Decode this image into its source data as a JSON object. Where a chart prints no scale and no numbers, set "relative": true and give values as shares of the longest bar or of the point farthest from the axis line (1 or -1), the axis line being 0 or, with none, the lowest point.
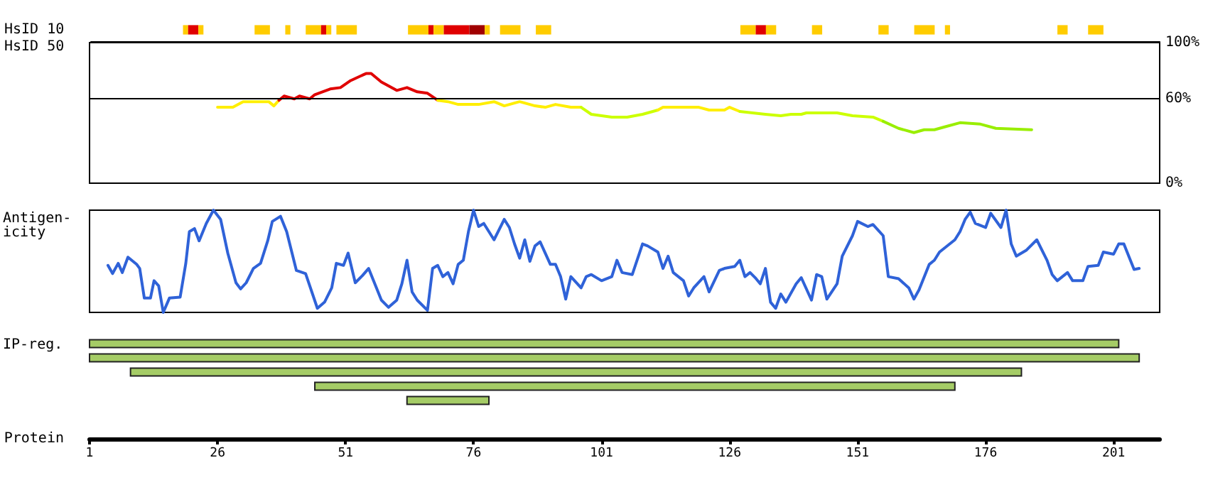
{
  "chart_data": [
    {
      "type": "bar",
      "orientation": "horizontal",
      "categories": [
        "HsID 10",
        "HsID 50"
      ],
      "xlim": [
        1,
        210
      ],
      "tick_labels": "y",
      "series": [
        {
          "color": "#ffcc00",
          "base": [
            19,
            null
          ],
          "values": [
            1,
            null
          ]
        },
        {
          "color": "#e00000",
          "base": [
            20,
            null
          ],
          "values": [
            2,
            null
          ]
        },
        {
          "color": "#ffcc00",
          "base": [
            22,
            null
          ],
          "values": [
            1,
            null
          ]
        },
        {
          "color": "#ffcc00",
          "base": [
            33,
            null
          ],
          "values": [
            3,
            null
          ]
        },
        {
          "color": "#ffcc00",
          "base": [
            39,
            null
          ],
          "values": [
            1,
            null
          ]
        },
        {
          "color": "#ffcc00",
          "base": [
            43,
            null
          ],
          "values": [
            3,
            null
          ]
        },
        {
          "color": "#e00000",
          "base": [
            46,
            null
          ],
          "values": [
            1,
            null
          ]
        },
        {
          "color": "#ffcc00",
          "base": [
            47,
            null
          ],
          "values": [
            1,
            null
          ]
        },
        {
          "color": "#ffcc00",
          "base": [
            49,
            null
          ],
          "values": [
            4,
            null
          ]
        },
        {
          "color": "#ffcc00",
          "base": [
            63,
            null
          ],
          "values": [
            4,
            null
          ]
        },
        {
          "color": "#e00000",
          "base": [
            67,
            null
          ],
          "values": [
            1,
            null
          ]
        },
        {
          "color": "#ffcc00",
          "base": [
            68,
            null
          ],
          "values": [
            2,
            null
          ]
        },
        {
          "color": "#e00000",
          "base": [
            70,
            null
          ],
          "values": [
            5,
            null
          ]
        },
        {
          "color": "#a00000",
          "base": [
            75,
            null
          ],
          "values": [
            3,
            null
          ]
        },
        {
          "color": "#ffcc00",
          "base": [
            78,
            null
          ],
          "values": [
            1,
            null
          ]
        },
        {
          "color": "#ffcc00",
          "base": [
            81,
            null
          ],
          "values": [
            4,
            null
          ]
        },
        {
          "color": "#ffcc00",
          "base": [
            88,
            null
          ],
          "values": [
            3,
            null
          ]
        },
        {
          "color": "#ffcc00",
          "base": [
            128,
            null
          ],
          "values": [
            3,
            null
          ]
        },
        {
          "color": "#e00000",
          "base": [
            131,
            null
          ],
          "values": [
            2,
            null
          ]
        },
        {
          "color": "#ffcc00",
          "base": [
            133,
            null
          ],
          "values": [
            2,
            null
          ]
        },
        {
          "color": "#ffcc00",
          "base": [
            142,
            null
          ],
          "values": [
            2,
            null
          ]
        },
        {
          "color": "#ffcc00",
          "base": [
            155,
            null
          ],
          "values": [
            2,
            null
          ]
        },
        {
          "color": "#ffcc00",
          "base": [
            162,
            null
          ],
          "values": [
            4,
            null
          ]
        },
        {
          "color": "#ffcc00",
          "base": [
            168,
            null
          ],
          "values": [
            1,
            null
          ]
        },
        {
          "color": "#ffcc00",
          "base": [
            190,
            null
          ],
          "values": [
            2,
            null
          ]
        },
        {
          "color": "#ffcc00",
          "base": [
            196,
            null
          ],
          "values": [
            3,
            null
          ]
        }
      ]
    },
    {
      "type": "line",
      "xlim": [
        1,
        210
      ],
      "ylim": [
        0,
        100
      ],
      "yticks": [
        {
          "value": 0,
          "label": "0%"
        },
        {
          "value": 60,
          "label": "60%"
        },
        {
          "value": 100,
          "label": "100%"
        }
      ],
      "tick_labels": "y",
      "grid": false,
      "marker": "none",
      "ref_lines": [
        {
          "axis": "y",
          "value": 60,
          "color": "#000000"
        }
      ],
      "series": [
        {
          "color": "#ffee00",
          "x": [
            26,
            29,
            31,
            36,
            37,
            38
          ],
          "values": [
            54,
            54,
            58,
            58,
            55,
            59
          ]
        },
        {
          "color": "#e00000",
          "x": [
            38,
            39,
            41,
            42,
            44,
            45,
            48,
            50,
            52,
            55,
            56,
            58,
            61,
            63,
            65,
            67,
            69
          ],
          "values": [
            59,
            62,
            60,
            62,
            60,
            63,
            67,
            68,
            73,
            78,
            78,
            72,
            66,
            68,
            65,
            64,
            59
          ]
        },
        {
          "color": "#ffee00",
          "x": [
            69,
            71,
            73,
            77,
            80,
            82,
            85,
            88,
            90,
            92,
            95,
            97
          ],
          "values": [
            59,
            58,
            56,
            56,
            58,
            55,
            58,
            55,
            54,
            56,
            54,
            54
          ]
        },
        {
          "color": "#ccff00",
          "x": [
            97,
            99,
            103,
            106,
            109,
            112
          ],
          "values": [
            54,
            49,
            47,
            47,
            49,
            52
          ]
        },
        {
          "color": "#ffee00",
          "x": [
            112,
            113,
            120,
            122,
            125,
            126,
            128
          ],
          "values": [
            52,
            54,
            54,
            52,
            52,
            54,
            51
          ]
        },
        {
          "color": "#ccff00",
          "x": [
            128,
            133,
            136,
            138,
            140,
            141,
            147,
            150,
            154,
            156
          ],
          "values": [
            51,
            49,
            48,
            49,
            49,
            50,
            50,
            48,
            47,
            44
          ]
        },
        {
          "color": "#99ee00",
          "x": [
            156,
            159,
            162,
            164,
            166,
            168,
            171,
            175,
            178,
            185
          ],
          "values": [
            44,
            39,
            36,
            38,
            38,
            40,
            43,
            42,
            39,
            38
          ]
        }
      ]
    },
    {
      "type": "line",
      "relative": true,
      "ylabel": "Antigen-icity",
      "xlim": [
        1,
        210
      ],
      "tick_labels": false,
      "marker": "none",
      "series": [
        {
          "color": "#2f62d8",
          "x": [
            4.6,
            5.5,
            6.6,
            7.4,
            8.5,
            10.2,
            10.8,
            11.7,
            12.9,
            13.6,
            14.5,
            15.4,
            16.6,
            18.7,
            19.8,
            20.5,
            21.5,
            22.4,
            23.8,
            25.2,
            26.6,
            28,
            29.6,
            30.5,
            31.6,
            33,
            34.4,
            35.8,
            36.7,
            38.3,
            39.5,
            41.4,
            43.2,
            45.5,
            46.9,
            48.3,
            49.2,
            50.6,
            51.5,
            52.9,
            54.3,
            55.5,
            58,
            59.4,
            61,
            62,
            63,
            64,
            65,
            67,
            68,
            69,
            70,
            71,
            72,
            73,
            74,
            75,
            76,
            77,
            78,
            79,
            80,
            82,
            83,
            84,
            85,
            86,
            87,
            88,
            89,
            91,
            92,
            93,
            94,
            95,
            97,
            98,
            99,
            101,
            103,
            104,
            105,
            107,
            109,
            110,
            112,
            113,
            114,
            115,
            117,
            118,
            119,
            121,
            122,
            124,
            125,
            127,
            128,
            129,
            130,
            131,
            132,
            133,
            134,
            135,
            136,
            137,
            139,
            140,
            142,
            143,
            144,
            145,
            147,
            148,
            150,
            151,
            153,
            154,
            156,
            157,
            159,
            161,
            162,
            163,
            165,
            166,
            167,
            168,
            170,
            171,
            172,
            173,
            174,
            176,
            177,
            179,
            180,
            181,
            182,
            184,
            186,
            188,
            189,
            190,
            192,
            193,
            195,
            196,
            198,
            199,
            201,
            202,
            203,
            205,
            206
          ],
          "values": [
            0.46,
            0.38,
            0.48,
            0.39,
            0.54,
            0.47,
            0.43,
            0.14,
            0.14,
            0.31,
            0.26,
            0,
            0.14,
            0.15,
            0.48,
            0.79,
            0.82,
            0.7,
            0.87,
            1,
            0.91,
            0.58,
            0.29,
            0.23,
            0.29,
            0.43,
            0.48,
            0.7,
            0.89,
            0.94,
            0.79,
            0.41,
            0.38,
            0.04,
            0.1,
            0.24,
            0.48,
            0.46,
            0.58,
            0.29,
            0.36,
            0.43,
            0.12,
            0.05,
            0.12,
            0.28,
            0.51,
            0.2,
            0.12,
            0.02,
            0.43,
            0.46,
            0.35,
            0.39,
            0.28,
            0.47,
            0.51,
            0.79,
            1,
            0.84,
            0.87,
            0.79,
            0.71,
            0.91,
            0.83,
            0.67,
            0.53,
            0.71,
            0.5,
            0.65,
            0.69,
            0.47,
            0.47,
            0.35,
            0.13,
            0.35,
            0.24,
            0.35,
            0.37,
            0.31,
            0.35,
            0.51,
            0.39,
            0.37,
            0.67,
            0.65,
            0.59,
            0.43,
            0.55,
            0.39,
            0.31,
            0.16,
            0.24,
            0.35,
            0.2,
            0.41,
            0.43,
            0.45,
            0.51,
            0.35,
            0.39,
            0.34,
            0.28,
            0.43,
            0.1,
            0.04,
            0.18,
            0.1,
            0.28,
            0.34,
            0.12,
            0.37,
            0.35,
            0.13,
            0.28,
            0.55,
            0.75,
            0.89,
            0.84,
            0.86,
            0.75,
            0.35,
            0.33,
            0.24,
            0.13,
            0.22,
            0.47,
            0.51,
            0.59,
            0.63,
            0.71,
            0.79,
            0.91,
            0.98,
            0.87,
            0.83,
            0.97,
            0.83,
            1,
            0.67,
            0.55,
            0.61,
            0.71,
            0.51,
            0.37,
            0.31,
            0.39,
            0.31,
            0.31,
            0.45,
            0.46,
            0.59,
            0.57,
            0.67,
            0.67,
            0.42,
            0.43
          ]
        }
      ]
    },
    {
      "type": "bar",
      "orientation": "horizontal",
      "ylabel": "IP-reg.",
      "xlabel": "Protein",
      "categories": [
        null,
        null,
        null,
        null,
        null
      ],
      "base": [
        1,
        1,
        9,
        45,
        63
      ],
      "values": [
        201,
        205,
        174,
        125,
        16
      ],
      "color": "#a5cc66",
      "xlim": [
        1,
        210
      ],
      "xticks": [
        1,
        26,
        51,
        76,
        101,
        126,
        151,
        176,
        201
      ],
      "tick_labels": "x"
    }
  ]
}
